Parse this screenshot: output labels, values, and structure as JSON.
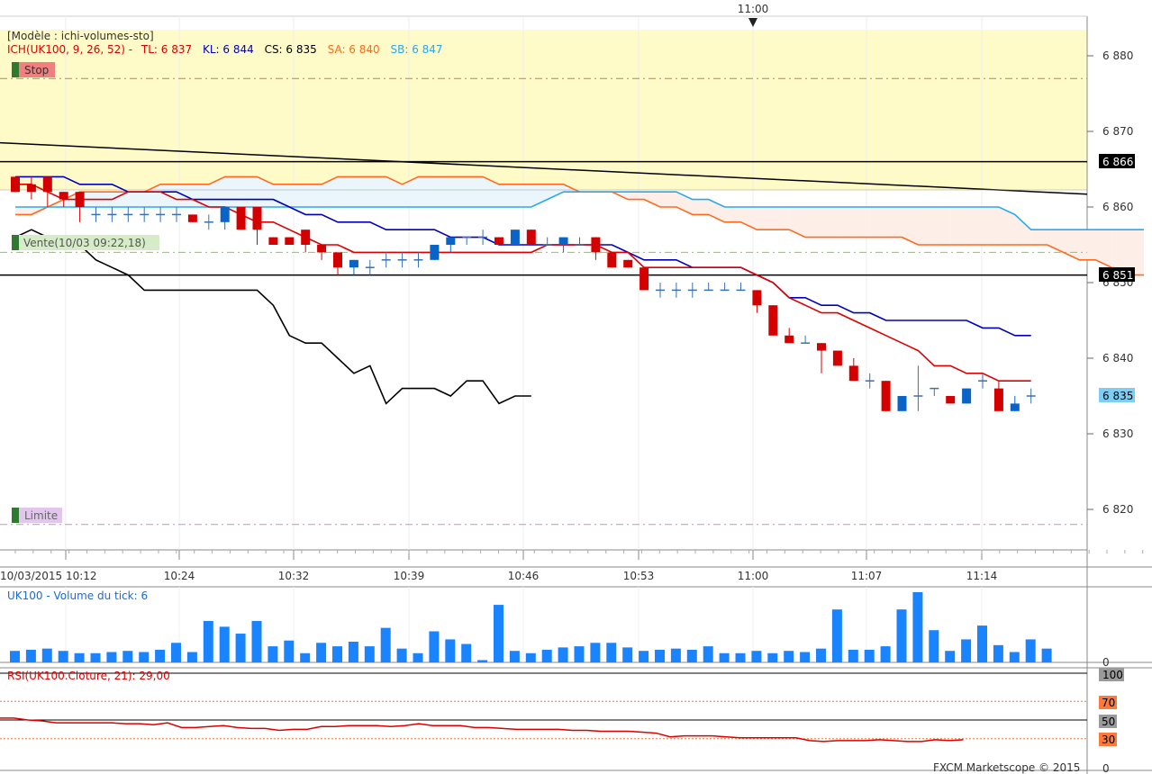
{
  "top_time_marker": "11:00",
  "indicator_panel": {
    "model_label": "[Modèle : ichi-volumes-sto]",
    "ichimoku": {
      "prefix": "ICH(UK100, 9, 26, 52) -",
      "tl": "TL: 6 837",
      "kl": "KL: 6 844",
      "cs": "CS: 6 835",
      "sa": "SA: 6 840",
      "sb": "SB: 6 847"
    },
    "stop_label": "Stop",
    "limit_label": "Limite",
    "sell_label": "Vente(10/03 09:22,18)"
  },
  "price_badges": {
    "upper": "6 866",
    "lower": "6 851",
    "current": "6 835"
  },
  "volume_panel": {
    "title": "UK100 - Volume du tick: 6",
    "zero_label": "0"
  },
  "rsi_panel": {
    "title": "RSI(UK100.Cloture, 21): 29,00",
    "levels": [
      "100",
      "70",
      "50",
      "30",
      "0"
    ]
  },
  "footer": "FXCM Marketscope © 2015",
  "colors": {
    "tenkan": "#dd0000",
    "kijun": "#0000bb",
    "chikou": "#000000",
    "senkou_a": "#ff6a1f",
    "senkou_b": "#29a8f0",
    "bull": "#0a64c8",
    "bear": "#d40000",
    "volume": "#1a84ff",
    "rsi": "#dd0000",
    "zone": "#fffbc8"
  },
  "chart_data": {
    "type": "candlestick",
    "y_ticks": [
      6880,
      6870,
      6860,
      6850,
      6840,
      6830,
      6820
    ],
    "y_range": [
      6814,
      6886
    ],
    "x_tick_labels": [
      "10/03/2015 10:12",
      "10:24",
      "10:32",
      "10:39",
      "10:46",
      "10:53",
      "11:00",
      "11:07",
      "11:14"
    ],
    "levels": {
      "stop": 6877,
      "limit": 6818,
      "sell": 6854,
      "upper_line": 6866,
      "lower_line": 6851
    },
    "candles": [
      [
        6864,
        6864,
        6862,
        6862
      ],
      [
        6863,
        6864,
        6861,
        6862
      ],
      [
        6864,
        6864,
        6860,
        6862
      ],
      [
        6862,
        6862,
        6860,
        6861
      ],
      [
        6862,
        6862,
        6858,
        6860
      ],
      [
        6859,
        6860,
        6858,
        6859
      ],
      [
        6859,
        6860,
        6858,
        6859
      ],
      [
        6859,
        6860,
        6858,
        6859
      ],
      [
        6859,
        6860,
        6858,
        6859
      ],
      [
        6859,
        6860,
        6858,
        6859
      ],
      [
        6859,
        6860,
        6858,
        6859
      ],
      [
        6859,
        6859,
        6858,
        6858
      ],
      [
        6858,
        6859,
        6857,
        6858
      ],
      [
        6858,
        6860,
        6857,
        6860
      ],
      [
        6860,
        6860,
        6857,
        6857
      ],
      [
        6860,
        6860,
        6855,
        6857
      ],
      [
        6856,
        6856,
        6855,
        6855
      ],
      [
        6856,
        6856,
        6855,
        6855
      ],
      [
        6857,
        6857,
        6854,
        6855
      ],
      [
        6855,
        6855,
        6853,
        6854
      ],
      [
        6854,
        6854,
        6851,
        6852
      ],
      [
        6852,
        6853,
        6851,
        6853
      ],
      [
        6852,
        6853,
        6851,
        6852
      ],
      [
        6853,
        6854,
        6852,
        6853
      ],
      [
        6853,
        6854,
        6852,
        6853
      ],
      [
        6853,
        6854,
        6852,
        6853
      ],
      [
        6853,
        6855,
        6853,
        6855
      ],
      [
        6855,
        6856,
        6854,
        6856
      ],
      [
        6856,
        6856,
        6855,
        6856
      ],
      [
        6856,
        6857,
        6855,
        6856
      ],
      [
        6856,
        6856,
        6855,
        6855
      ],
      [
        6855,
        6857,
        6855,
        6857
      ],
      [
        6857,
        6857,
        6855,
        6855
      ],
      [
        6855,
        6856,
        6855,
        6855
      ],
      [
        6855,
        6856,
        6854,
        6856
      ],
      [
        6855,
        6856,
        6855,
        6855
      ],
      [
        6856,
        6856,
        6853,
        6854
      ],
      [
        6854,
        6854,
        6852,
        6852
      ],
      [
        6853,
        6853,
        6852,
        6852
      ],
      [
        6852,
        6852,
        6849,
        6849
      ],
      [
        6849,
        6850,
        6848,
        6849
      ],
      [
        6849,
        6850,
        6848,
        6849
      ],
      [
        6849,
        6850,
        6848,
        6849
      ],
      [
        6849,
        6850,
        6849,
        6849
      ],
      [
        6849,
        6850,
        6849,
        6849
      ],
      [
        6849,
        6850,
        6849,
        6849
      ],
      [
        6849,
        6849,
        6846,
        6847
      ],
      [
        6847,
        6847,
        6843,
        6843
      ],
      [
        6843,
        6844,
        6842,
        6842
      ],
      [
        6842,
        6843,
        6842,
        6842
      ],
      [
        6842,
        6842,
        6838,
        6841
      ],
      [
        6841,
        6841,
        6839,
        6839
      ],
      [
        6839,
        6840,
        6837,
        6837
      ],
      [
        6837,
        6838,
        6836,
        6837
      ],
      [
        6837,
        6837,
        6833,
        6833
      ],
      [
        6833,
        6835,
        6833,
        6835
      ],
      [
        6835,
        6839,
        6833,
        6835
      ],
      [
        6836,
        6836,
        6835,
        6836
      ],
      [
        6835,
        6835,
        6834,
        6834
      ],
      [
        6834,
        6836,
        6834,
        6836
      ],
      [
        6837,
        6838,
        6836,
        6837
      ],
      [
        6836,
        6837,
        6833,
        6833
      ],
      [
        6833,
        6835,
        6833,
        6834
      ],
      [
        6835,
        6836,
        6834,
        6835
      ]
    ],
    "tenkan": [
      6863,
      6863,
      6862,
      6861,
      6861,
      6861,
      6861,
      6862,
      6862,
      6862,
      6861,
      6861,
      6860,
      6860,
      6859,
      6858,
      6858,
      6857,
      6856,
      6855,
      6855,
      6854,
      6854,
      6854,
      6854,
      6854,
      6854,
      6854,
      6854,
      6854,
      6854,
      6854,
      6854,
      6855,
      6855,
      6855,
      6855,
      6854,
      6854,
      6852,
      6852,
      6852,
      6852,
      6852,
      6852,
      6852,
      6851,
      6850,
      6848,
      6847,
      6846,
      6846,
      6845,
      6844,
      6843,
      6842,
      6841,
      6839,
      6839,
      6838,
      6838,
      6837,
      6837,
      6837
    ],
    "kijun": [
      6864,
      6864,
      6864,
      6864,
      6863,
      6863,
      6863,
      6862,
      6862,
      6862,
      6862,
      6861,
      6861,
      6861,
      6861,
      6861,
      6861,
      6860,
      6859,
      6859,
      6858,
      6858,
      6858,
      6857,
      6857,
      6857,
      6857,
      6856,
      6856,
      6856,
      6855,
      6855,
      6855,
      6855,
      6855,
      6855,
      6855,
      6855,
      6854,
      6853,
      6853,
      6853,
      6852,
      6852,
      6852,
      6852,
      6851,
      6850,
      6848,
      6848,
      6847,
      6847,
      6846,
      6846,
      6845,
      6845,
      6845,
      6845,
      6845,
      6845,
      6844,
      6844,
      6843,
      6843
    ],
    "chikou": [
      6856,
      6857,
      6856,
      6855,
      6855,
      6853,
      6852,
      6851,
      6849,
      6849,
      6849,
      6849,
      6849,
      6849,
      6849,
      6849,
      6847,
      6843,
      6842,
      6842,
      6840,
      6838,
      6839,
      6834,
      6836,
      6836,
      6836,
      6835,
      6837,
      6837,
      6834,
      6835,
      6835
    ],
    "senkou_a": [
      6859,
      6859,
      6860,
      6861,
      6862,
      6862,
      6862,
      6862,
      6862,
      6863,
      6863,
      6863,
      6863,
      6864,
      6864,
      6864,
      6863,
      6863,
      6863,
      6863,
      6864,
      6864,
      6864,
      6864,
      6863,
      6864,
      6864,
      6864,
      6864,
      6864,
      6863,
      6863,
      6863,
      6863,
      6863,
      6862,
      6862,
      6862,
      6861,
      6861,
      6860,
      6860,
      6859,
      6859,
      6858,
      6858,
      6857,
      6857,
      6857,
      6856,
      6856,
      6856,
      6856,
      6856,
      6856,
      6856,
      6855,
      6855,
      6855,
      6855,
      6855,
      6855,
      6855,
      6855,
      6855,
      6854,
      6853,
      6853,
      6852,
      6851,
      6851
    ],
    "senkou_b": [
      6860,
      6860,
      6860,
      6860,
      6860,
      6860,
      6860,
      6860,
      6860,
      6860,
      6860,
      6860,
      6860,
      6860,
      6860,
      6860,
      6860,
      6860,
      6860,
      6860,
      6860,
      6860,
      6860,
      6860,
      6860,
      6860,
      6860,
      6860,
      6860,
      6860,
      6860,
      6860,
      6860,
      6861,
      6862,
      6862,
      6862,
      6862,
      6862,
      6862,
      6862,
      6862,
      6861,
      6861,
      6860,
      6860,
      6860,
      6860,
      6860,
      6860,
      6860,
      6860,
      6860,
      6860,
      6860,
      6860,
      6860,
      6860,
      6860,
      6860,
      6860,
      6860,
      6859,
      6857,
      6857,
      6857,
      6857,
      6857,
      6857,
      6857,
      6857
    ],
    "volume": [
      10,
      11,
      12,
      10,
      8,
      8,
      9,
      10,
      9,
      11,
      17,
      9,
      36,
      31,
      25,
      36,
      14,
      19,
      8,
      17,
      14,
      18,
      14,
      30,
      12,
      8,
      27,
      20,
      16,
      2,
      50,
      10,
      8,
      11,
      13,
      14,
      17,
      17,
      13,
      10,
      11,
      12,
      11,
      14,
      8,
      8,
      10,
      8,
      10,
      9,
      12,
      46,
      11,
      11,
      14,
      46,
      61,
      28,
      10,
      20,
      32,
      15,
      9,
      20,
      12
    ],
    "rsi": [
      52,
      52,
      50,
      49,
      47,
      47,
      47,
      47,
      47,
      46,
      46,
      45,
      47,
      42,
      42,
      43,
      44,
      42,
      41,
      41,
      39,
      40,
      40,
      43,
      43,
      44,
      44,
      44,
      43,
      44,
      46,
      44,
      44,
      44,
      42,
      42,
      41,
      40,
      40,
      40,
      40,
      39,
      39,
      38,
      38,
      38,
      37,
      36,
      32,
      33,
      33,
      33,
      32,
      31,
      31,
      31,
      31,
      31,
      28,
      27,
      28,
      28,
      28,
      29,
      28,
      27,
      27,
      29,
      28,
      29
    ]
  }
}
